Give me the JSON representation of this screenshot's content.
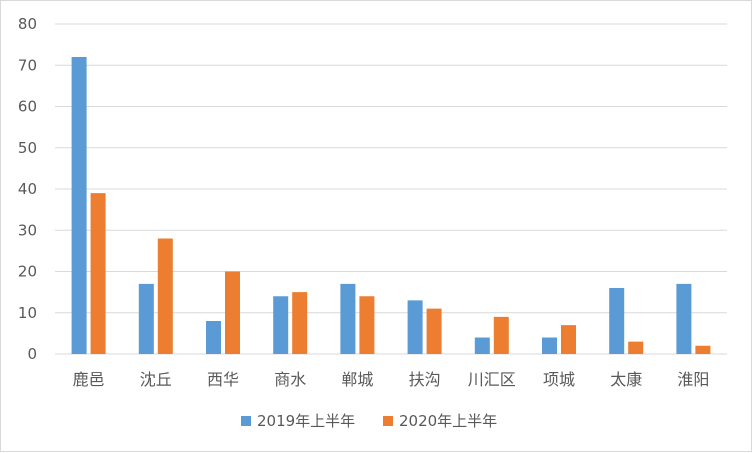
{
  "chart_data": {
    "type": "bar",
    "categories": [
      "鹿邑",
      "沈丘",
      "西华",
      "商水",
      "郸城",
      "扶沟",
      "川汇区",
      "项城",
      "太康",
      "淮阳"
    ],
    "series": [
      {
        "name": "2019年上半年",
        "color": "#5b9bd5",
        "values": [
          72,
          17,
          8,
          14,
          17,
          13,
          4,
          4,
          16,
          17
        ]
      },
      {
        "name": "2020年上半年",
        "color": "#ed7d31",
        "values": [
          39,
          28,
          20,
          15,
          14,
          11,
          9,
          7,
          3,
          2
        ]
      }
    ],
    "title": "",
    "xlabel": "",
    "ylabel": "",
    "ylim": [
      0,
      80
    ],
    "yticks": [
      0,
      10,
      20,
      30,
      40,
      50,
      60,
      70,
      80
    ],
    "grid": true,
    "legend_position": "bottom",
    "gridline_color": "#d9d9d9"
  }
}
